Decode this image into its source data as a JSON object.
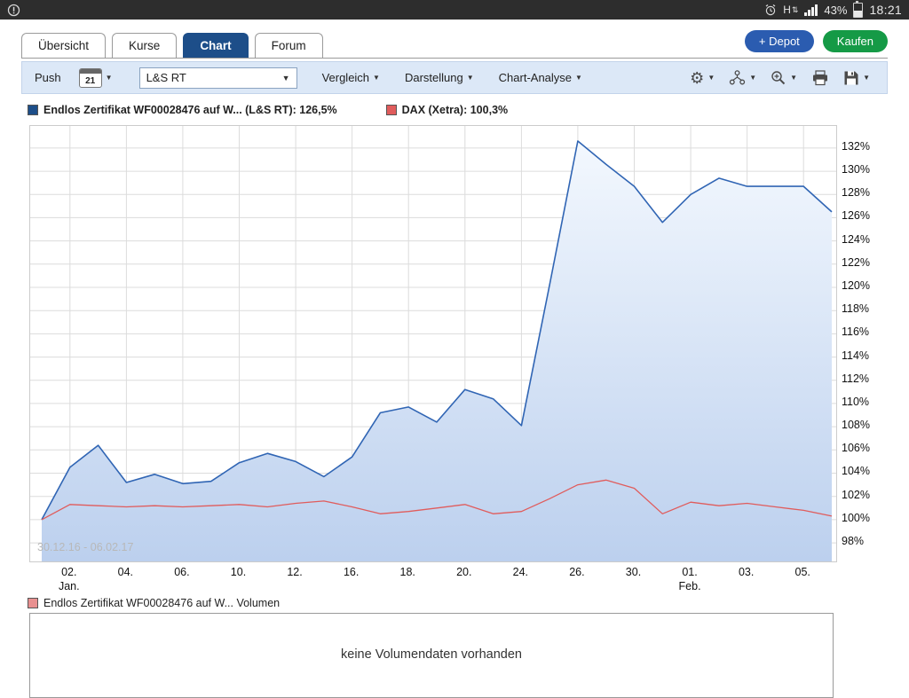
{
  "statusbar": {
    "time": "18:21",
    "battery_percent": "43%",
    "network_indicator": "H"
  },
  "icons": {
    "dropdown_arrow": "▼",
    "updown_arrows": "⇅",
    "gear": "⚙"
  },
  "tabs": [
    {
      "label": "Übersicht",
      "active": false
    },
    {
      "label": "Kurse",
      "active": false
    },
    {
      "label": "Chart",
      "active": true
    },
    {
      "label": "Forum",
      "active": false
    }
  ],
  "actions": {
    "depot_label": "+ Depot",
    "depot_color": "#2b5cb0",
    "kaufen_label": "Kaufen",
    "kaufen_color": "#159a46"
  },
  "toolbar": {
    "push_label": "Push",
    "calendar_day": "21",
    "instrument_select_value": "L&S RT",
    "vergleich_label": "Vergleich",
    "darstellung_label": "Darstellung",
    "chart_analyse_label": "Chart-Analyse"
  },
  "legend": {
    "series1": {
      "label": "Endlos Zertifikat WF00028476 auf W... (L&S RT): 126,5%",
      "color": "#1d4e89"
    },
    "series2": {
      "label": "DAX (Xetra): 100,3%",
      "color": "#e05c5c"
    }
  },
  "chart_data": {
    "type": "area",
    "title": "",
    "watermark": "30.12.16 - 06.02.17",
    "grid": true,
    "legend_position": "top-left",
    "x_axis": {
      "tick_labels": [
        "02.",
        "04.",
        "06.",
        "10.",
        "12.",
        "16.",
        "18.",
        "20.",
        "24.",
        "26.",
        "30.",
        "01.",
        "03.",
        "05."
      ],
      "tick_indices": [
        1,
        3,
        5,
        7,
        9,
        11,
        13,
        15,
        17,
        19,
        21,
        23,
        25,
        27
      ],
      "month_labels": [
        {
          "label": "Jan.",
          "tick_index": 0
        },
        {
          "label": "Feb.",
          "tick_index": 11
        }
      ]
    },
    "y_axis": {
      "tick_values": [
        98,
        100,
        102,
        104,
        106,
        108,
        110,
        112,
        114,
        116,
        118,
        120,
        122,
        124,
        126,
        128,
        130,
        132
      ],
      "tick_suffix": "%",
      "range": [
        96.4,
        133.9
      ]
    },
    "series": [
      {
        "name": "Endlos Zertifikat WF00028476 auf W... (L&S RT)",
        "current_value": "126,5%",
        "color": "#3065b4",
        "fill": true,
        "fill_top": "#f3f8fe",
        "fill_bottom": "#bcd0ee",
        "values": [
          100.0,
          104.5,
          106.4,
          103.2,
          103.9,
          103.1,
          103.3,
          104.9,
          105.7,
          105.0,
          103.7,
          105.4,
          109.2,
          109.7,
          108.4,
          111.2,
          110.4,
          108.1,
          120.2,
          132.6,
          130.6,
          128.7,
          125.6,
          128.0,
          129.4,
          128.7,
          128.7,
          128.7,
          126.5
        ]
      },
      {
        "name": "DAX (Xetra)",
        "current_value": "100,3%",
        "color": "#e05c5c",
        "fill": false,
        "values": [
          100.0,
          101.3,
          101.2,
          101.1,
          101.2,
          101.1,
          101.2,
          101.3,
          101.1,
          101.4,
          101.6,
          101.1,
          100.5,
          100.7,
          101.0,
          101.3,
          100.5,
          100.7,
          101.8,
          103.0,
          103.4,
          102.7,
          100.5,
          101.5,
          101.2,
          101.4,
          101.1,
          100.8,
          100.3
        ]
      }
    ]
  },
  "volume_panel": {
    "legend_label": "Endlos Zertifikat WF00028476 auf W... Volumen",
    "legend_color": "#e89090",
    "empty_text": "keine Volumendaten vorhanden"
  }
}
